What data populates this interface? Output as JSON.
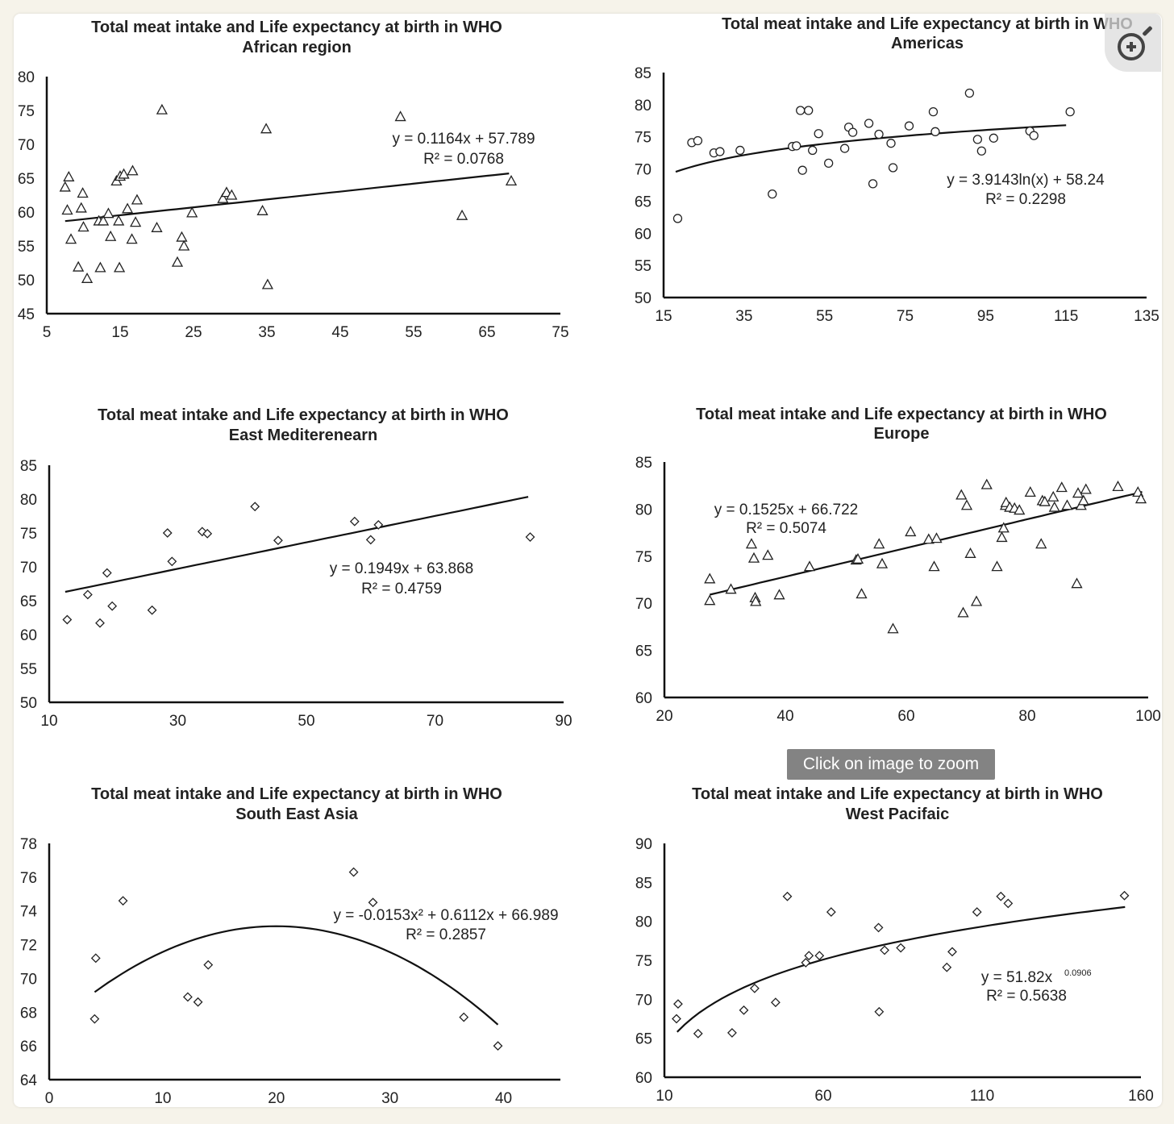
{
  "overlay": {
    "tooltip": "Click on image to zoom",
    "zoom_icon": "zoom-in-icon"
  },
  "chart_data": [
    {
      "id": "africa",
      "type": "scatter",
      "title": [
        "Total meat intake and Life expectancy at birth in WHO",
        "African region"
      ],
      "marker": "triangle",
      "xlim": [
        5,
        75
      ],
      "ylim": [
        45,
        80
      ],
      "xticks": [
        5,
        15,
        25,
        35,
        45,
        55,
        65,
        75
      ],
      "yticks": [
        45,
        50,
        55,
        60,
        65,
        70,
        75,
        80
      ],
      "trend": {
        "kind": "linear",
        "a": 0.1164,
        "b": 57.789,
        "x0": 7.5,
        "x1": 68
      },
      "equation": [
        "y = 0.1164x + 57.789",
        "R² = 0.0768"
      ],
      "points": [
        [
          7.5,
          63.7
        ],
        [
          7.8,
          60.3
        ],
        [
          8,
          65.2
        ],
        [
          8.3,
          56
        ],
        [
          9.3,
          51.9
        ],
        [
          9.7,
          60.6
        ],
        [
          9.9,
          62.8
        ],
        [
          10,
          57.8
        ],
        [
          10.5,
          50.2
        ],
        [
          12.1,
          58.7
        ],
        [
          12.3,
          51.8
        ],
        [
          12.7,
          58.7
        ],
        [
          13.4,
          59.8
        ],
        [
          13.7,
          56.4
        ],
        [
          14.5,
          64.6
        ],
        [
          14.8,
          58.7
        ],
        [
          14.9,
          51.8
        ],
        [
          15,
          65.3
        ],
        [
          15.5,
          65.6
        ],
        [
          16,
          60.5
        ],
        [
          16.6,
          56
        ],
        [
          16.7,
          66.1
        ],
        [
          17.1,
          58.5
        ],
        [
          17.3,
          61.8
        ],
        [
          20,
          57.7
        ],
        [
          20.7,
          75.1
        ],
        [
          22.8,
          52.6
        ],
        [
          23.4,
          56.3
        ],
        [
          23.7,
          55
        ],
        [
          24.8,
          59.9
        ],
        [
          29,
          62
        ],
        [
          29.5,
          62.9
        ],
        [
          30.2,
          62.5
        ],
        [
          34.4,
          60.2
        ],
        [
          34.9,
          72.3
        ],
        [
          35.1,
          49.3
        ],
        [
          53.2,
          74.1
        ],
        [
          61.6,
          59.5
        ],
        [
          68.3,
          64.6
        ]
      ]
    },
    {
      "id": "americas",
      "type": "scatter",
      "title": [
        "Total meat intake and Life expectancy at birth in WHO",
        "Americas"
      ],
      "marker": "circle",
      "xlim": [
        15,
        135
      ],
      "ylim": [
        50,
        85
      ],
      "xticks": [
        15,
        35,
        55,
        75,
        95,
        115,
        135
      ],
      "yticks": [
        50,
        55,
        60,
        65,
        70,
        75,
        80,
        85
      ],
      "trend": {
        "kind": "log",
        "a": 3.9143,
        "b": 58.24,
        "x0": 18,
        "x1": 115
      },
      "equation": [
        "y = 3.9143ln(x) + 58.24",
        "R² = 0.2298"
      ],
      "points": [
        [
          18.5,
          62.3
        ],
        [
          22,
          74.1
        ],
        [
          23.5,
          74.4
        ],
        [
          27.5,
          72.5
        ],
        [
          29,
          72.7
        ],
        [
          34,
          72.9
        ],
        [
          42,
          66.1
        ],
        [
          47,
          73.5
        ],
        [
          48,
          73.6
        ],
        [
          49,
          79.1
        ],
        [
          49.5,
          69.8
        ],
        [
          51,
          79.1
        ],
        [
          52,
          72.9
        ],
        [
          53.5,
          75.5
        ],
        [
          56,
          70.9
        ],
        [
          60,
          73.2
        ],
        [
          61,
          76.5
        ],
        [
          62,
          75.7
        ],
        [
          66,
          77.1
        ],
        [
          67,
          67.7
        ],
        [
          68.5,
          75.4
        ],
        [
          71.5,
          74
        ],
        [
          72,
          70.2
        ],
        [
          76,
          76.7
        ],
        [
          82,
          78.9
        ],
        [
          82.5,
          75.8
        ],
        [
          91,
          81.8
        ],
        [
          93,
          74.6
        ],
        [
          94,
          72.8
        ],
        [
          97,
          74.8
        ],
        [
          106,
          75.9
        ],
        [
          107,
          75.2
        ],
        [
          116,
          78.9
        ]
      ]
    },
    {
      "id": "east_med",
      "type": "scatter",
      "title": [
        "Total meat intake and Life expectancy at birth in WHO",
        "East Mediterenearn"
      ],
      "marker": "diamond",
      "xlim": [
        10,
        90
      ],
      "ylim": [
        50,
        85
      ],
      "xticks": [
        10,
        30,
        50,
        70,
        90
      ],
      "yticks": [
        50,
        55,
        60,
        65,
        70,
        75,
        80,
        85
      ],
      "trend": {
        "kind": "linear",
        "a": 0.1949,
        "b": 63.868,
        "x0": 12.5,
        "x1": 84.5
      },
      "equation": [
        "y = 0.1949x + 63.868",
        "R² = 0.4759"
      ],
      "points": [
        [
          12.8,
          62.2
        ],
        [
          16,
          65.9
        ],
        [
          17.9,
          61.7
        ],
        [
          19,
          69.1
        ],
        [
          19.8,
          64.2
        ],
        [
          26,
          63.6
        ],
        [
          28.4,
          75
        ],
        [
          29.1,
          70.8
        ],
        [
          33.8,
          75.2
        ],
        [
          34.6,
          74.9
        ],
        [
          42,
          78.9
        ],
        [
          45.6,
          73.9
        ],
        [
          57.5,
          76.7
        ],
        [
          60,
          74
        ],
        [
          61.2,
          76.2
        ],
        [
          84.8,
          74.4
        ]
      ]
    },
    {
      "id": "europe",
      "type": "scatter",
      "title": [
        "Total meat intake and Life expectancy at birth in WHO",
        "Europe"
      ],
      "marker": "triangle",
      "xlim": [
        20,
        100
      ],
      "ylim": [
        60,
        85
      ],
      "xticks": [
        20,
        40,
        60,
        80,
        100
      ],
      "yticks": [
        60,
        65,
        70,
        75,
        80,
        85
      ],
      "trend": {
        "kind": "linear",
        "a": 0.1525,
        "b": 66.722,
        "x0": 27.5,
        "x1": 99
      },
      "equation": [
        "y = 0.1525x + 66.722",
        "R² = 0.5074"
      ],
      "points": [
        [
          27.5,
          72.6
        ],
        [
          27.5,
          70.3
        ],
        [
          31,
          71.5
        ],
        [
          34.4,
          76.3
        ],
        [
          34.8,
          74.8
        ],
        [
          35,
          70.6
        ],
        [
          35.1,
          70.2
        ],
        [
          37.1,
          75.1
        ],
        [
          39,
          70.9
        ],
        [
          44,
          73.9
        ],
        [
          51.7,
          74.6
        ],
        [
          52,
          74.7
        ],
        [
          52.6,
          71
        ],
        [
          55.5,
          76.3
        ],
        [
          56,
          74.2
        ],
        [
          57.8,
          67.3
        ],
        [
          60.7,
          77.6
        ],
        [
          63.7,
          76.8
        ],
        [
          64.6,
          73.9
        ],
        [
          65,
          76.9
        ],
        [
          69.1,
          81.5
        ],
        [
          69.4,
          69
        ],
        [
          70,
          80.4
        ],
        [
          70.6,
          75.3
        ],
        [
          71.6,
          70.2
        ],
        [
          73.3,
          82.6
        ],
        [
          75,
          73.9
        ],
        [
          75.8,
          77
        ],
        [
          76.1,
          78
        ],
        [
          76.4,
          80.4
        ],
        [
          76.5,
          80.7
        ],
        [
          77.1,
          80.2
        ],
        [
          77.9,
          80.1
        ],
        [
          78.7,
          79.9
        ],
        [
          80.5,
          81.8
        ],
        [
          82.3,
          76.3
        ],
        [
          82.5,
          80.9
        ],
        [
          82.9,
          80.8
        ],
        [
          84.3,
          81.3
        ],
        [
          84.5,
          80.2
        ],
        [
          85.7,
          82.3
        ],
        [
          86.6,
          80.4
        ],
        [
          88.2,
          72.1
        ],
        [
          88.4,
          81.7
        ],
        [
          88.9,
          80.4
        ],
        [
          89.3,
          80.9
        ],
        [
          89.7,
          82.1
        ],
        [
          95,
          82.4
        ],
        [
          98.3,
          81.8
        ],
        [
          98.8,
          81.1
        ]
      ]
    },
    {
      "id": "south_east_asia",
      "type": "scatter",
      "title": [
        "Total meat intake and Life expectancy at birth in WHO",
        "South East Asia"
      ],
      "marker": "diamond",
      "xlim": [
        0,
        45
      ],
      "ylim": [
        64,
        78
      ],
      "xticks": [
        0,
        10,
        20,
        30,
        40
      ],
      "yticks": [
        64,
        66,
        68,
        70,
        72,
        74,
        76,
        78
      ],
      "trend": {
        "kind": "poly2",
        "a": -0.0153,
        "b": 0.6112,
        "c": 66.989,
        "x0": 4,
        "x1": 39.5
      },
      "equation": [
        "y = -0.0153x² + 0.6112x + 66.989",
        "R² = 0.2857"
      ],
      "points": [
        [
          4,
          67.6
        ],
        [
          4.1,
          71.2
        ],
        [
          6.5,
          74.6
        ],
        [
          12.2,
          68.9
        ],
        [
          13.1,
          68.6
        ],
        [
          14,
          70.8
        ],
        [
          26.8,
          76.3
        ],
        [
          28.5,
          74.5
        ],
        [
          36.5,
          67.7
        ],
        [
          39.5,
          66
        ]
      ]
    },
    {
      "id": "west_pacific",
      "type": "scatter",
      "title": [
        "Total meat intake and Life expectancy at birth in WHO",
        "West Pacifaic"
      ],
      "marker": "diamond",
      "xlim": [
        10,
        160
      ],
      "ylim": [
        60,
        90
      ],
      "xticks": [
        10,
        60,
        110,
        160
      ],
      "yticks": [
        60,
        65,
        70,
        75,
        80,
        85,
        90
      ],
      "trend": {
        "kind": "power",
        "a": 51.82,
        "b": 0.0906,
        "x0": 14,
        "x1": 155
      },
      "equation": [
        "y = 51.82x",
        "0.0906",
        "R² = 0.5638"
      ],
      "points": [
        [
          13.8,
          67.5
        ],
        [
          14.3,
          69.4
        ],
        [
          20.6,
          65.6
        ],
        [
          31.3,
          65.7
        ],
        [
          35,
          68.6
        ],
        [
          38.4,
          71.4
        ],
        [
          45,
          69.6
        ],
        [
          48.7,
          83.2
        ],
        [
          54.5,
          74.7
        ],
        [
          55.5,
          75.6
        ],
        [
          58.8,
          75.6
        ],
        [
          62.5,
          81.2
        ],
        [
          77.4,
          79.2
        ],
        [
          77.6,
          68.4
        ],
        [
          79.3,
          76.3
        ],
        [
          84.4,
          76.6
        ],
        [
          98.9,
          74.1
        ],
        [
          100.6,
          76.1
        ],
        [
          108.4,
          81.2
        ],
        [
          115.9,
          83.2
        ],
        [
          118.2,
          82.3
        ],
        [
          154.8,
          83.3
        ]
      ]
    }
  ]
}
